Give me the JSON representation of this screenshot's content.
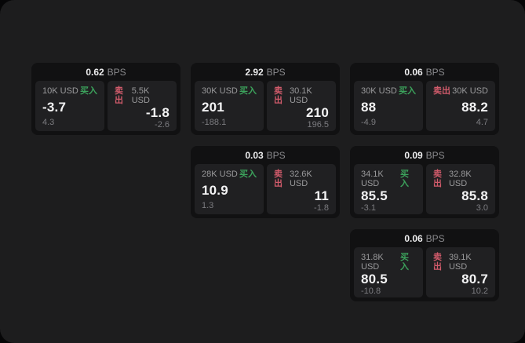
{
  "labels": {
    "buy": "买入",
    "sell": "卖出",
    "bps": "BPS"
  },
  "colors": {
    "screen_bg": "#1d1d1e",
    "card_bg": "#111112",
    "pane_bg": "#202022",
    "buy_green": "#3ca35c",
    "sell_red": "#d15b6b",
    "value_white": "#f3f3f4",
    "label_gray": "#9a9a9c",
    "dim_gray": "#7c7c80"
  },
  "cards": [
    {
      "bps_value": "0.62",
      "buy": {
        "amount": "10K USD",
        "price": "-3.7",
        "delta": "4.3"
      },
      "sell": {
        "amount": "5.5K USD",
        "price": "-1.8",
        "delta": "-2.6"
      }
    },
    {
      "bps_value": "2.92",
      "buy": {
        "amount": "30K USD",
        "price": "201",
        "delta": "-188.1"
      },
      "sell": {
        "amount": "30.1K USD",
        "price": "210",
        "delta": "196.5"
      }
    },
    {
      "bps_value": "0.06",
      "buy": {
        "amount": "30K USD",
        "price": "88",
        "delta": "-4.9"
      },
      "sell": {
        "amount": "30K USD",
        "price": "88.2",
        "delta": "4.7"
      }
    },
    {
      "bps_value": "0.03",
      "buy": {
        "amount": "28K USD",
        "price": "10.9",
        "delta": "1.3"
      },
      "sell": {
        "amount": "32.6K USD",
        "price": "11",
        "delta": "-1.8"
      }
    },
    {
      "bps_value": "0.09",
      "buy": {
        "amount": "34.1K USD",
        "price": "85.5",
        "delta": "-3.1"
      },
      "sell": {
        "amount": "32.8K USD",
        "price": "85.8",
        "delta": "3.0"
      }
    },
    {
      "bps_value": "0.06",
      "buy": {
        "amount": "31.8K USD",
        "price": "80.5",
        "delta": "-10.8"
      },
      "sell": {
        "amount": "39.1K USD",
        "price": "80.7",
        "delta": "10.2"
      }
    }
  ]
}
